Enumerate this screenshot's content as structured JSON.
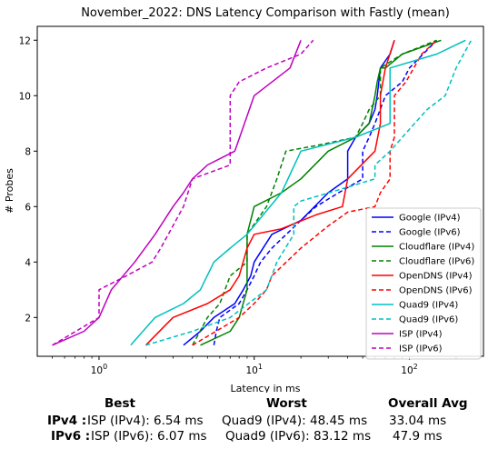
{
  "chart_data": {
    "type": "line",
    "title": "November_2022: DNS Latency Comparison with Fastly (mean)",
    "xlabel": "Latency in ms",
    "ylabel": "# Probes",
    "xscale": "log",
    "xlim": [
      0.4,
      300
    ],
    "ylim": [
      0.6,
      12.5
    ],
    "xticks": [
      {
        "value": 1,
        "base": "10",
        "exp": "0"
      },
      {
        "value": 10,
        "base": "10",
        "exp": "1"
      },
      {
        "value": 100,
        "base": "10",
        "exp": "2"
      }
    ],
    "yticks": [
      2,
      4,
      6,
      8,
      10,
      12
    ],
    "grid": false,
    "legend_position": "lower-right",
    "series": [
      {
        "name": "Google (IPv4)",
        "color": "#0000ff",
        "dash": "solid",
        "x": [
          3.5,
          4.5,
          5.5,
          7.5,
          8.5,
          9.5,
          10,
          13,
          20,
          30,
          40,
          40,
          45,
          55,
          60,
          62,
          65,
          75,
          80
        ],
        "y": [
          1,
          1.5,
          2,
          2.5,
          3,
          3.5,
          4,
          5,
          5.5,
          6.5,
          7,
          8,
          8.5,
          9,
          9.5,
          10,
          11,
          11.5,
          12
        ]
      },
      {
        "name": "Google (IPv6)",
        "color": "#0000ff",
        "dash": "dashed",
        "x": [
          5.5,
          5.7,
          6,
          8,
          9,
          10,
          11,
          13,
          20,
          25,
          35,
          50,
          50,
          55,
          60,
          70,
          90,
          100,
          150
        ],
        "y": [
          1,
          1.5,
          2,
          2.5,
          3,
          3.5,
          4,
          4.5,
          5.5,
          6,
          6.5,
          7,
          8,
          8.5,
          9,
          10,
          10.5,
          11,
          12
        ]
      },
      {
        "name": "Cloudflare (IPv4)",
        "color": "#008000",
        "dash": "solid",
        "x": [
          4.5,
          7,
          8,
          9,
          9,
          10,
          15,
          20,
          30,
          45,
          55,
          60,
          62,
          65,
          70,
          90,
          160
        ],
        "y": [
          1,
          1.5,
          2,
          3,
          5,
          6,
          6.5,
          7,
          8,
          8.5,
          9,
          10,
          10.5,
          11,
          11,
          11.5,
          12
        ]
      },
      {
        "name": "Cloudflare (IPv6)",
        "color": "#008000",
        "dash": "dashed",
        "x": [
          4,
          5,
          6,
          7,
          9,
          9,
          12,
          14,
          16,
          25,
          45,
          50,
          55,
          65,
          65,
          90,
          150
        ],
        "y": [
          1,
          2,
          2.5,
          3.5,
          4,
          5,
          6,
          7,
          8,
          8.2,
          8.5,
          9,
          9.5,
          10,
          11,
          11.5,
          12
        ]
      },
      {
        "name": "OpenDNS (IPv4)",
        "color": "#ff0000",
        "dash": "solid",
        "x": [
          2,
          3,
          5,
          7,
          8,
          9,
          10,
          15,
          25,
          37,
          40,
          60,
          65,
          65,
          70,
          80
        ],
        "y": [
          1,
          2,
          2.5,
          3,
          3.5,
          4.5,
          5,
          5.2,
          5.7,
          6,
          7,
          8,
          9,
          10,
          11,
          12
        ]
      },
      {
        "name": "OpenDNS (IPv6)",
        "color": "#ff0000",
        "dash": "dashed",
        "x": [
          4,
          8,
          10,
          12,
          13,
          20,
          30,
          40,
          60,
          65,
          75,
          75,
          80,
          80,
          95,
          120,
          150
        ],
        "y": [
          1,
          2,
          2.5,
          3,
          3.5,
          4.5,
          5.3,
          5.8,
          6,
          6.5,
          7,
          8,
          8.5,
          10,
          10.5,
          11.5,
          12
        ]
      },
      {
        "name": "Quad9 (IPv4)",
        "color": "#00bfbf",
        "dash": "solid",
        "x": [
          1.6,
          2.3,
          3.5,
          4.5,
          5.5,
          7,
          9,
          15,
          20,
          45,
          75,
          75,
          150,
          230
        ],
        "y": [
          1,
          2,
          2.5,
          3,
          4,
          4.5,
          5,
          6.5,
          8,
          8.5,
          9,
          11,
          11.5,
          12
        ]
      },
      {
        "name": "Quad9 (IPv6)",
        "color": "#00bfbf",
        "dash": "dashed",
        "x": [
          2,
          4,
          7,
          12,
          14,
          18,
          18,
          20,
          40,
          60,
          60,
          75,
          90,
          130,
          170,
          200,
          250
        ],
        "y": [
          1,
          1.5,
          2,
          3,
          4,
          5,
          6,
          6.2,
          6.7,
          7,
          7.5,
          8,
          8.5,
          9.5,
          10,
          11,
          12
        ]
      },
      {
        "name": "ISP (IPv4)",
        "color": "#bf00bf",
        "dash": "solid",
        "x": [
          0.5,
          0.8,
          1,
          1.2,
          1.7,
          2.3,
          3,
          3.5,
          4,
          5,
          7.5,
          10,
          17,
          20
        ],
        "y": [
          1,
          1.5,
          2,
          3,
          4,
          5,
          6,
          6.5,
          7,
          7.5,
          8,
          10,
          11,
          12
        ]
      },
      {
        "name": "ISP (IPv6)",
        "color": "#bf00bf",
        "dash": "dashed",
        "x": [
          0.5,
          1,
          1,
          1.5,
          2.2,
          2.5,
          3.5,
          4,
          7,
          7,
          8,
          12,
          20,
          24
        ],
        "y": [
          1,
          2,
          3,
          3.5,
          4,
          4.5,
          6,
          7,
          7.5,
          10,
          10.5,
          11,
          11.5,
          12
        ]
      }
    ]
  },
  "summary": {
    "headers": {
      "best": "Best",
      "worst": "Worst",
      "overall": "Overall Avg"
    },
    "rows": [
      {
        "label": "IPv4 :",
        "best": "ISP (IPv4): 6.54 ms",
        "worst": "Quad9 (IPv4): 48.45 ms",
        "overall": "33.04 ms"
      },
      {
        "label": "IPv6 :",
        "best": "ISP (IPv6): 6.07 ms",
        "worst": "Quad9 (IPv6): 83.12 ms",
        "overall": "47.9 ms"
      }
    ]
  }
}
